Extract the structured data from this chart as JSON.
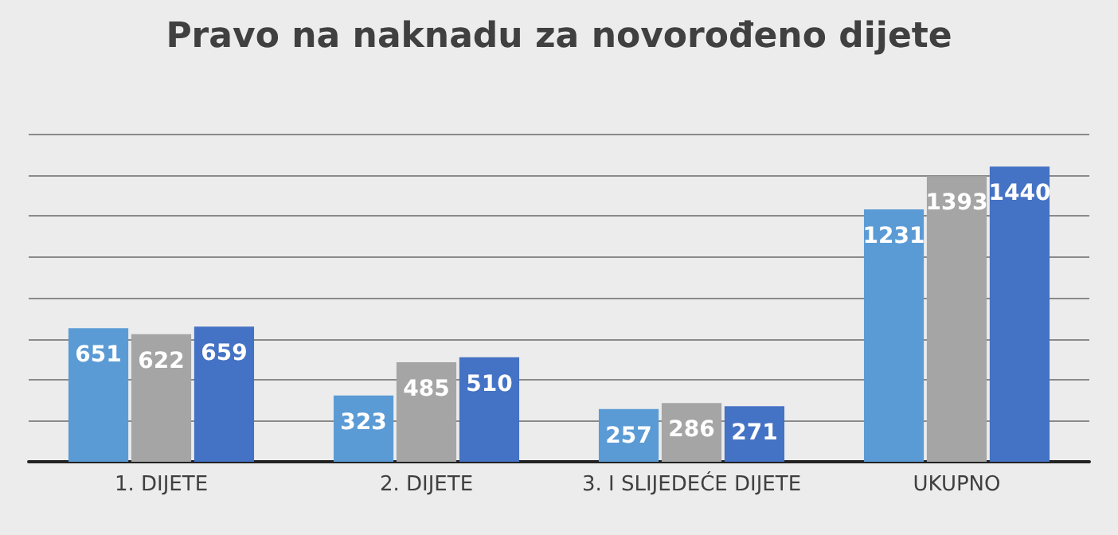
{
  "chart_data": {
    "type": "bar",
    "title": "Pravo na naknadu za novorođeno dijete",
    "categories": [
      "1. DIJETE",
      "2. DIJETE",
      "3. I SLIJEDEĆE DIJETE",
      "UKUPNO"
    ],
    "series": [
      {
        "color": "#5b9bd5",
        "values": [
          651,
          323,
          257,
          1231
        ]
      },
      {
        "color": "#a5a5a5",
        "values": [
          622,
          485,
          286,
          1393
        ]
      },
      {
        "color": "#4472c4",
        "values": [
          659,
          510,
          271,
          1440
        ]
      }
    ],
    "ylim": [
      0,
      1600
    ],
    "yticks": [
      {
        "value": 0,
        "label": null
      },
      {
        "value": 200,
        "label": null
      },
      {
        "value": 400,
        "label": null
      },
      {
        "value": 600,
        "label": null
      },
      {
        "value": 800,
        "label": null
      },
      {
        "value": 1000,
        "label": null
      },
      {
        "value": 1200,
        "label": null
      },
      {
        "value": 1400,
        "label": null
      },
      {
        "value": 1600,
        "label": null
      }
    ],
    "grid": "y",
    "tick_labels": "x",
    "data_labels": true
  }
}
